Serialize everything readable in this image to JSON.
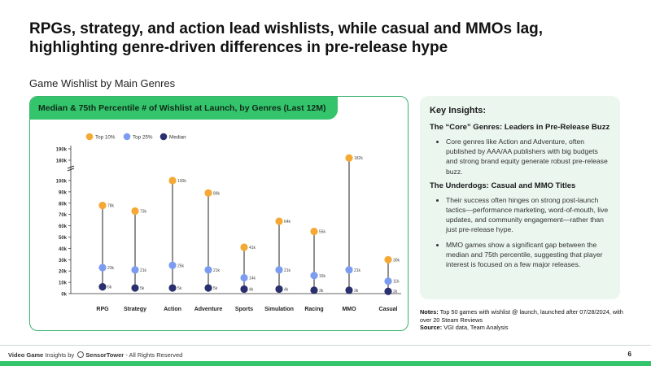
{
  "header": {
    "title": "RPGs, strategy, and action lead wishlists, while casual and MMOs lag, highlighting genre-driven differences in pre-release hype",
    "subtitle": "Game Wishlist by Main Genres"
  },
  "chart_panel": {
    "heading": "Median & 75th Percentile # of Wishlist at Launch, by Genres (Last 12M)"
  },
  "chart_data": {
    "type": "scatter",
    "categories": [
      "RPG",
      "Strategy",
      "Action",
      "Adventure",
      "Sports",
      "Simulation",
      "Racing",
      "MMO",
      "Casual"
    ],
    "series": [
      {
        "name": "Top 10%",
        "color": "#f5a834",
        "values": [
          78,
          73,
          100,
          89,
          41,
          64,
          55,
          182,
          30
        ],
        "labels": [
          "78k",
          "73k",
          "100k",
          "89k",
          "41k",
          "64k",
          "55k",
          "182k",
          "30k"
        ]
      },
      {
        "name": "Top 25%",
        "color": "#7b9cf0",
        "values": [
          23,
          21,
          25,
          21,
          14,
          21,
          16,
          21,
          11
        ],
        "labels": [
          "23k",
          "21k",
          "25k",
          "21k",
          "14k",
          "21k",
          "16k",
          "21k",
          "11k"
        ]
      },
      {
        "name": "Median",
        "color": "#2a2f6e",
        "values": [
          6,
          5,
          5,
          5,
          4,
          4,
          3,
          3,
          2
        ],
        "labels": [
          "6k",
          "5k",
          "5k",
          "5k",
          "4k",
          "4k",
          "3k",
          "3k",
          "2k"
        ]
      }
    ],
    "y_ticks": [
      "0k",
      "10k",
      "20k",
      "30k",
      "40k",
      "50k",
      "60k",
      "70k",
      "80k",
      "90k",
      "100k",
      "180k",
      "190k"
    ],
    "y_axis_break": "between 100k and 180k",
    "legend_position": "top-left"
  },
  "insights": {
    "title": "Key Insights:",
    "sections": [
      {
        "heading": "The “Core” Genres: Leaders in Pre-Release Buzz",
        "bullets": [
          "Core genres like Action and Adventure, often published by AAA/AA publishers with big budgets and strong brand equity generate robust pre-release buzz."
        ]
      },
      {
        "heading": "The Underdogs: Casual and MMO Titles",
        "bullets": [
          "Their success often hinges on strong post-launch tactics—performance marketing, word-of-mouth, live updates, and community engagement—rather than just pre-release hype.",
          "MMO games show a significant gap between the median and 75th percentile, suggesting that player interest is focused on a few major releases."
        ]
      }
    ]
  },
  "notes": {
    "notes_label": "Notes:",
    "notes_text": "Top 50 games with wishlist @ launch, launched after 07/28/2024, with over 20 Steam Reviews",
    "source_label": "Source:",
    "source_text": "VGI data, Team Analysis"
  },
  "footer": {
    "brand_bold": "Video Game",
    "brand_rest": "Insights by",
    "company": "SensorTower",
    "rights": "- All Rights Reserved",
    "page_number": "6"
  }
}
